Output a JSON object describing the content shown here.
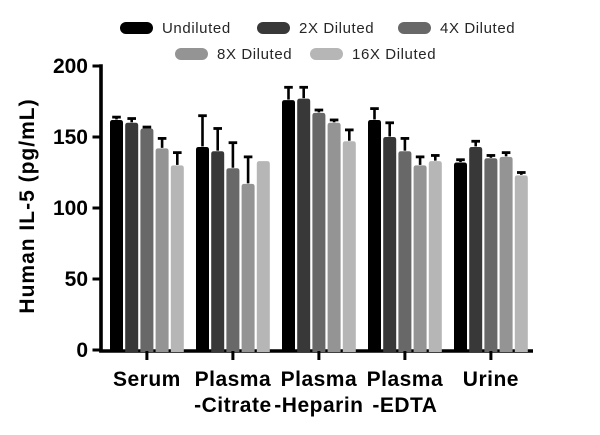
{
  "chart_data": {
    "type": "bar",
    "title": "",
    "xlabel": "",
    "ylabel": "Human IL-5 (pg/mL)",
    "ylim": [
      0,
      200
    ],
    "yticks": [
      0,
      50,
      100,
      150,
      200
    ],
    "grid": false,
    "legend_position": "top",
    "error_bars": "upper only, black T-caps",
    "categories": [
      "Serum",
      "Plasma\n-Citrate",
      "Plasma\n-Heparin",
      "Plasma\n-EDTA",
      "Urine"
    ],
    "series": [
      {
        "name": "Undiluted",
        "color": "#000000",
        "values": [
          162,
          143,
          176,
          162,
          132
        ],
        "errors": [
          2,
          22,
          9,
          8,
          2
        ]
      },
      {
        "name": "2X Diluted",
        "color": "#383838",
        "values": [
          160,
          140,
          177,
          150,
          143
        ],
        "errors": [
          3,
          16,
          8,
          10,
          4
        ]
      },
      {
        "name": "4X Diluted",
        "color": "#686868",
        "values": [
          156,
          128,
          167,
          140,
          135
        ],
        "errors": [
          1,
          18,
          2,
          9,
          2
        ]
      },
      {
        "name": "8X Diluted",
        "color": "#949494",
        "values": [
          142,
          117,
          160,
          130,
          136
        ],
        "errors": [
          7,
          19,
          2,
          6,
          3
        ]
      },
      {
        "name": "16X Diluted",
        "color": "#b6b6b6",
        "values": [
          130,
          133,
          147,
          133,
          123
        ],
        "errors": [
          9,
          0,
          8,
          4,
          2
        ]
      }
    ],
    "colors": {
      "axis": "#000000",
      "error_bar": "#000000",
      "background": "#ffffff"
    }
  }
}
